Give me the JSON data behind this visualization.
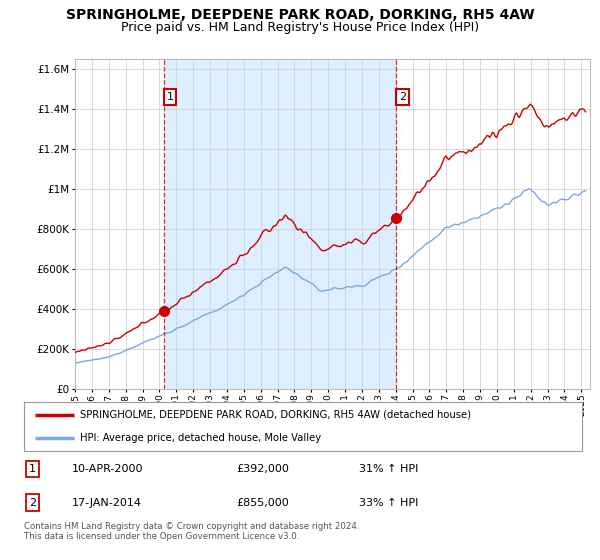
{
  "title": "SPRINGHOLME, DEEPDENE PARK ROAD, DORKING, RH5 4AW",
  "subtitle": "Price paid vs. HM Land Registry's House Price Index (HPI)",
  "title_fontsize": 10,
  "subtitle_fontsize": 9,
  "ylabel_ticks": [
    "£0",
    "£200K",
    "£400K",
    "£600K",
    "£800K",
    "£1M",
    "£1.2M",
    "£1.4M",
    "£1.6M"
  ],
  "ytick_values": [
    0,
    200000,
    400000,
    600000,
    800000,
    1000000,
    1200000,
    1400000,
    1600000
  ],
  "ylim": [
    0,
    1650000
  ],
  "xlim_start": 1995.0,
  "xlim_end": 2025.5,
  "xtick_years": [
    1995,
    1996,
    1997,
    1998,
    1999,
    2000,
    2001,
    2002,
    2003,
    2004,
    2005,
    2006,
    2007,
    2008,
    2009,
    2010,
    2011,
    2012,
    2013,
    2014,
    2015,
    2016,
    2017,
    2018,
    2019,
    2020,
    2021,
    2022,
    2023,
    2024,
    2025
  ],
  "sale1_x": 2000.27,
  "sale1_y": 392000,
  "sale1_label": "1",
  "sale2_x": 2014.04,
  "sale2_y": 855000,
  "sale2_label": "2",
  "line1_color": "#cc0000",
  "line2_color": "#7aaadd",
  "vline_color": "#cc0000",
  "shade_color": "#ddeeff",
  "legend_line1": "SPRINGHOLME, DEEPDENE PARK ROAD, DORKING, RH5 4AW (detached house)",
  "legend_line2": "HPI: Average price, detached house, Mole Valley",
  "ann1_date": "10-APR-2000",
  "ann1_price": "£392,000",
  "ann1_hpi": "31% ↑ HPI",
  "ann2_date": "17-JAN-2014",
  "ann2_price": "£855,000",
  "ann2_hpi": "33% ↑ HPI",
  "footer": "Contains HM Land Registry data © Crown copyright and database right 2024.\nThis data is licensed under the Open Government Licence v3.0.",
  "bg_color": "#ffffff",
  "plot_bg_color": "#ffffff"
}
